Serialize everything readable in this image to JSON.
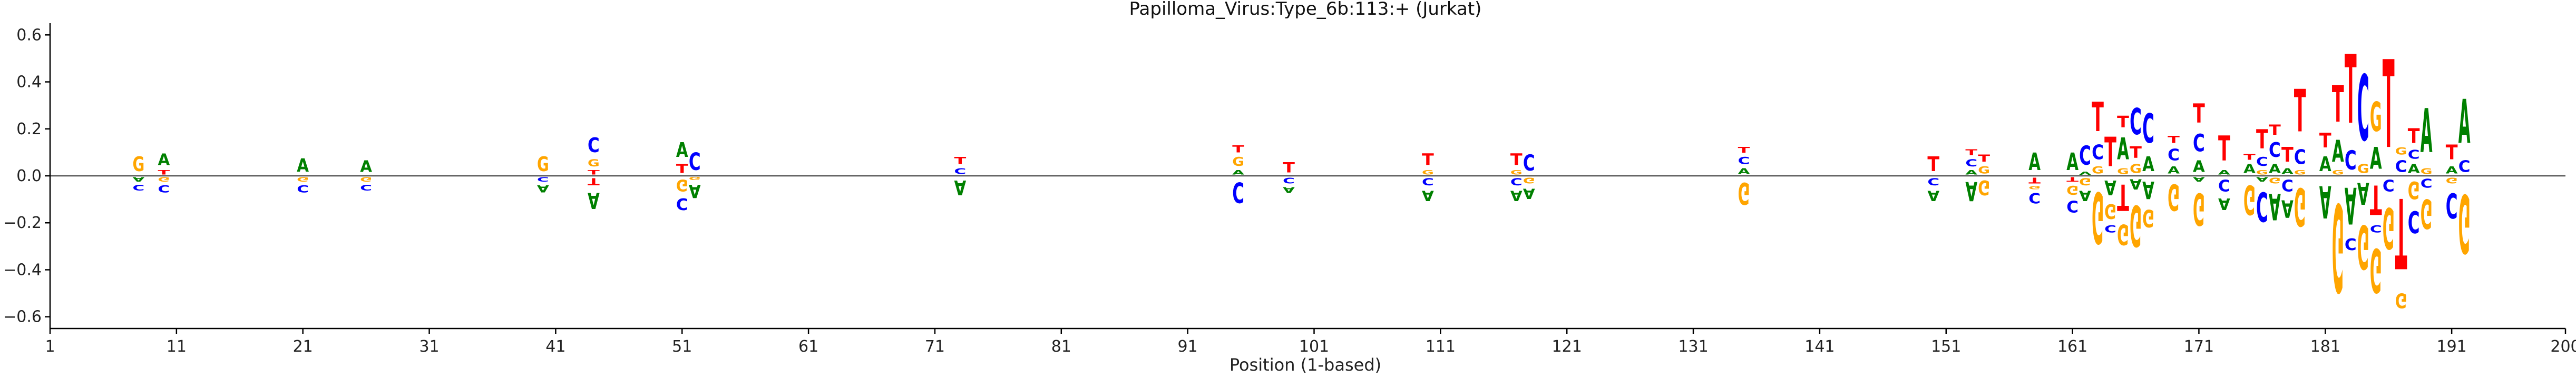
{
  "chart_data": {
    "type": "sequence-logo",
    "title": "Papilloma_Virus:Type_6b:113:+  (Jurkat)",
    "xlabel": "Position (1-based)",
    "ylabel": "",
    "xlim": [
      1,
      200
    ],
    "ylim": [
      -0.65,
      0.65
    ],
    "x_ticks": [
      1,
      11,
      21,
      31,
      41,
      51,
      61,
      71,
      81,
      91,
      101,
      111,
      121,
      131,
      141,
      151,
      161,
      171,
      181,
      191,
      200
    ],
    "y_ticks": [
      -0.6,
      -0.4,
      -0.2,
      0.0,
      0.2,
      0.4,
      0.6
    ],
    "y_tick_labels": [
      "−0.6",
      "−0.4",
      "−0.2",
      "0.0",
      "0.2",
      "0.4",
      "0.6"
    ],
    "grid": false,
    "letter_colors": {
      "A": "#008000",
      "C": "#0000ff",
      "G": "#ffa500",
      "T": "#ff0000"
    },
    "columns": [
      {
        "pos": 8,
        "up": [
          [
            "G",
            0.1
          ]
        ],
        "down": [
          [
            "A",
            0.03
          ],
          [
            "C",
            0.04
          ]
        ]
      },
      {
        "pos": 10,
        "up": [
          [
            "T",
            0.03
          ],
          [
            "A",
            0.08
          ]
        ],
        "down": [
          [
            "G",
            0.03
          ],
          [
            "C",
            0.05
          ]
        ]
      },
      {
        "pos": 21,
        "up": [
          [
            "A",
            0.09
          ]
        ],
        "down": [
          [
            "G",
            0.03
          ],
          [
            "C",
            0.05
          ]
        ]
      },
      {
        "pos": 26,
        "up": [
          [
            "A",
            0.08
          ]
        ],
        "down": [
          [
            "G",
            0.03
          ],
          [
            "C",
            0.04
          ]
        ]
      },
      {
        "pos": 40,
        "up": [
          [
            "G",
            0.1
          ]
        ],
        "down": [
          [
            "C",
            0.03
          ],
          [
            "A",
            0.05
          ]
        ]
      },
      {
        "pos": 44,
        "up": [
          [
            "T",
            0.03
          ],
          [
            "G",
            0.05
          ],
          [
            "C",
            0.1
          ]
        ],
        "down": [
          [
            "T",
            0.05
          ],
          [
            "A",
            0.11
          ]
        ]
      },
      {
        "pos": 51,
        "up": [
          [
            "T",
            0.06
          ],
          [
            "A",
            0.1
          ]
        ],
        "down": [
          [
            "G",
            0.08
          ],
          [
            "C",
            0.08
          ]
        ]
      },
      {
        "pos": 52,
        "up": [
          [
            "C",
            0.12
          ]
        ],
        "down": [
          [
            "G",
            0.02
          ],
          [
            "A",
            0.09
          ]
        ]
      },
      {
        "pos": 73,
        "up": [
          [
            "C",
            0.04
          ],
          [
            "T",
            0.05
          ]
        ],
        "down": [
          [
            "A",
            0.1
          ]
        ]
      },
      {
        "pos": 95,
        "up": [
          [
            "A",
            0.03
          ],
          [
            "G",
            0.06
          ],
          [
            "T",
            0.05
          ]
        ],
        "down": [
          [
            "C",
            0.14
          ]
        ]
      },
      {
        "pos": 99,
        "up": [
          [
            "T",
            0.07
          ]
        ],
        "down": [
          [
            "C",
            0.04
          ],
          [
            "A",
            0.04
          ]
        ]
      },
      {
        "pos": 110,
        "up": [
          [
            "G",
            0.03
          ],
          [
            "T",
            0.08
          ]
        ],
        "down": [
          [
            "C",
            0.05
          ],
          [
            "A",
            0.07
          ]
        ]
      },
      {
        "pos": 117,
        "up": [
          [
            "G",
            0.03
          ],
          [
            "T",
            0.08
          ]
        ],
        "down": [
          [
            "C",
            0.05
          ],
          [
            "A",
            0.07
          ]
        ]
      },
      {
        "pos": 118,
        "up": [
          [
            "C",
            0.11
          ]
        ],
        "down": [
          [
            "G",
            0.04
          ],
          [
            "A",
            0.07
          ]
        ]
      },
      {
        "pos": 135,
        "up": [
          [
            "A",
            0.04
          ],
          [
            "C",
            0.05
          ],
          [
            "T",
            0.04
          ]
        ],
        "down": [
          [
            "G",
            0.15
          ]
        ]
      },
      {
        "pos": 150,
        "up": [
          [
            "T",
            0.1
          ]
        ],
        "down": [
          [
            "C",
            0.05
          ],
          [
            "A",
            0.07
          ]
        ]
      },
      {
        "pos": 153,
        "up": [
          [
            "A",
            0.03
          ],
          [
            "C",
            0.05
          ],
          [
            "T",
            0.04
          ]
        ],
        "down": [
          [
            "A",
            0.13
          ]
        ]
      },
      {
        "pos": 154,
        "up": [
          [
            "G",
            0.05
          ],
          [
            "T",
            0.05
          ]
        ],
        "down": [
          [
            "G",
            0.1
          ]
        ]
      },
      {
        "pos": 158,
        "up": [
          [
            "A",
            0.12
          ]
        ],
        "down": [
          [
            "T",
            0.04
          ],
          [
            "G",
            0.02
          ],
          [
            "C",
            0.07
          ]
        ]
      },
      {
        "pos": 161,
        "up": [
          [
            "A",
            0.12
          ]
        ],
        "down": [
          [
            "T",
            0.03
          ],
          [
            "G",
            0.06
          ],
          [
            "C",
            0.08
          ]
        ]
      },
      {
        "pos": 162,
        "up": [
          [
            "A",
            0.02
          ],
          [
            "C",
            0.13
          ]
        ],
        "down": [
          [
            "G",
            0.05
          ],
          [
            "A",
            0.07
          ]
        ]
      },
      {
        "pos": 163,
        "up": [
          [
            "G",
            0.05
          ],
          [
            "C",
            0.1
          ],
          [
            "T",
            0.2
          ]
        ],
        "down": [
          [
            "G",
            0.35
          ]
        ]
      },
      {
        "pos": 164,
        "up": [
          [
            "T",
            0.2
          ]
        ],
        "down": [
          [
            "A",
            0.1
          ],
          [
            "G",
            0.1
          ],
          [
            "C",
            0.05
          ]
        ]
      },
      {
        "pos": 165,
        "up": [
          [
            "G",
            0.04
          ],
          [
            "A",
            0.15
          ],
          [
            "T",
            0.08
          ]
        ],
        "down": [
          [
            "T",
            0.18
          ],
          [
            "G",
            0.14
          ]
        ]
      },
      {
        "pos": 166,
        "up": [
          [
            "G",
            0.06
          ],
          [
            "T",
            0.08
          ],
          [
            "C",
            0.18
          ]
        ],
        "down": [
          [
            "A",
            0.07
          ],
          [
            "G",
            0.28
          ]
        ]
      },
      {
        "pos": 167,
        "up": [
          [
            "A",
            0.1
          ],
          [
            "C",
            0.2
          ]
        ],
        "down": [
          [
            "A",
            0.12
          ],
          [
            "G",
            0.12
          ]
        ]
      },
      {
        "pos": 169,
        "up": [
          [
            "A",
            0.05
          ],
          [
            "C",
            0.08
          ],
          [
            "T",
            0.05
          ]
        ],
        "down": [
          [
            "G",
            0.18
          ]
        ]
      },
      {
        "pos": 171,
        "up": [
          [
            "A",
            0.08
          ],
          [
            "C",
            0.12
          ],
          [
            "T",
            0.13
          ]
        ],
        "down": [
          [
            "A",
            0.03
          ],
          [
            "G",
            0.22
          ]
        ]
      },
      {
        "pos": 173,
        "up": [
          [
            "A",
            0.03
          ],
          [
            "T",
            0.17
          ]
        ],
        "down": [
          [
            "C",
            0.08
          ],
          [
            "A",
            0.08
          ]
        ]
      },
      {
        "pos": 175,
        "up": [
          [
            "A",
            0.06
          ],
          [
            "T",
            0.04
          ]
        ],
        "down": [
          [
            "G",
            0.2
          ]
        ]
      },
      {
        "pos": 176,
        "up": [
          [
            "G",
            0.03
          ],
          [
            "C",
            0.06
          ],
          [
            "T",
            0.13
          ]
        ],
        "down": [
          [
            "A",
            0.03
          ],
          [
            "C",
            0.2
          ]
        ]
      },
      {
        "pos": 177,
        "up": [
          [
            "A",
            0.06
          ],
          [
            "C",
            0.1
          ],
          [
            "T",
            0.07
          ]
        ],
        "down": [
          [
            "G",
            0.04
          ],
          [
            "A",
            0.18
          ]
        ]
      },
      {
        "pos": 178,
        "up": [
          [
            "A",
            0.04
          ],
          [
            "T",
            0.1
          ]
        ],
        "down": [
          [
            "C",
            0.08
          ],
          [
            "A",
            0.12
          ]
        ]
      },
      {
        "pos": 179,
        "up": [
          [
            "G",
            0.03
          ],
          [
            "C",
            0.1
          ],
          [
            "T",
            0.29
          ]
        ],
        "down": [
          [
            "G",
            0.26
          ]
        ]
      },
      {
        "pos": 181,
        "up": [
          [
            "A",
            0.1
          ],
          [
            "T",
            0.1
          ]
        ],
        "down": [
          [
            "A",
            0.22
          ]
        ]
      },
      {
        "pos": 182,
        "up": [
          [
            "G",
            0.03
          ],
          [
            "A",
            0.15
          ],
          [
            "T",
            0.25
          ]
        ],
        "down": [
          [
            "G",
            0.6
          ]
        ]
      },
      {
        "pos": 183,
        "up": [
          [
            "C",
            0.13
          ],
          [
            "T",
            0.47
          ]
        ],
        "down": [
          [
            "A",
            0.25
          ],
          [
            "C",
            0.08
          ]
        ]
      },
      {
        "pos": 184,
        "up": [
          [
            "G",
            0.06
          ],
          [
            "C",
            0.45
          ]
        ],
        "down": [
          [
            "A",
            0.15
          ],
          [
            "G",
            0.3
          ]
        ]
      },
      {
        "pos": 185,
        "up": [
          [
            "A",
            0.15
          ],
          [
            "G",
            0.2
          ]
        ],
        "down": [
          [
            "T",
            0.2
          ],
          [
            "C",
            0.05
          ],
          [
            "G",
            0.3
          ]
        ]
      },
      {
        "pos": 186,
        "up": [
          [
            "T",
            0.6
          ]
        ],
        "down": [
          [
            "C",
            0.08
          ],
          [
            "G",
            0.28
          ]
        ]
      },
      {
        "pos": 187,
        "up": [
          [
            "C",
            0.08
          ],
          [
            "G",
            0.05
          ]
        ],
        "down": [
          [
            "T",
            0.48
          ],
          [
            "G",
            0.1
          ]
        ]
      },
      {
        "pos": 188,
        "up": [
          [
            "A",
            0.06
          ],
          [
            "C",
            0.06
          ],
          [
            "T",
            0.1
          ]
        ],
        "down": [
          [
            "G",
            0.12
          ],
          [
            "C",
            0.15
          ]
        ]
      },
      {
        "pos": 189,
        "up": [
          [
            "G",
            0.04
          ],
          [
            "A",
            0.3
          ]
        ],
        "down": [
          [
            "C",
            0.06
          ],
          [
            "G",
            0.2
          ]
        ]
      },
      {
        "pos": 191,
        "up": [
          [
            "A",
            0.05
          ],
          [
            "T",
            0.1
          ]
        ],
        "down": [
          [
            "G",
            0.04
          ],
          [
            "C",
            0.17
          ]
        ]
      },
      {
        "pos": 192,
        "up": [
          [
            "C",
            0.08
          ],
          [
            "A",
            0.3
          ]
        ],
        "down": [
          [
            "G",
            0.4
          ]
        ]
      }
    ]
  }
}
